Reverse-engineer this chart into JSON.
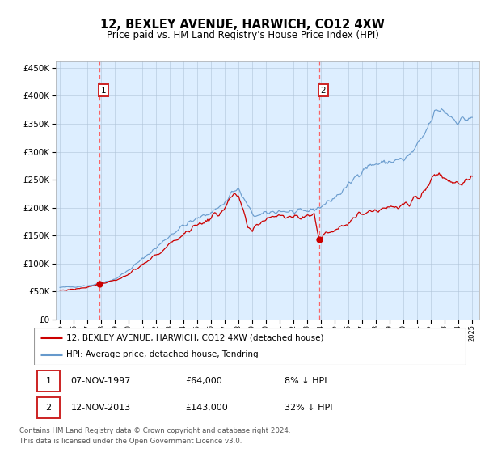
{
  "title": "12, BEXLEY AVENUE, HARWICH, CO12 4XW",
  "subtitle": "Price paid vs. HM Land Registry's House Price Index (HPI)",
  "sale1_year": 1997.86,
  "sale1_price": 64000,
  "sale2_year": 2013.86,
  "sale2_price": 143000,
  "legend_line1": "12, BEXLEY AVENUE, HARWICH, CO12 4XW (detached house)",
  "legend_line2": "HPI: Average price, detached house, Tendring",
  "footnote": "Contains HM Land Registry data © Crown copyright and database right 2024.\nThis data is licensed under the Open Government Licence v3.0.",
  "line_red_color": "#cc0000",
  "line_blue_color": "#6699cc",
  "plot_bg": "#ddeeff",
  "grid_color": "#b0c4d8",
  "dashed_line_color": "#ff5555",
  "ylim_max": 462000,
  "ylim_min": 0,
  "xlim_min": 1994.7,
  "xlim_max": 2025.5,
  "hpi_anchors_x": [
    1995.0,
    1996.0,
    1997.0,
    1997.5,
    1998.0,
    1999.0,
    2000.0,
    2001.0,
    2002.0,
    2003.0,
    2004.0,
    2005.0,
    2006.0,
    2007.0,
    2007.5,
    2008.0,
    2008.5,
    2009.0,
    2009.5,
    2010.0,
    2010.5,
    2011.0,
    2011.5,
    2012.0,
    2012.5,
    2013.0,
    2013.5,
    2014.0,
    2014.5,
    2015.0,
    2015.5,
    2016.0,
    2016.5,
    2017.0,
    2017.5,
    2018.0,
    2018.5,
    2019.0,
    2019.5,
    2020.0,
    2020.5,
    2021.0,
    2021.5,
    2022.0,
    2022.25,
    2022.5,
    2022.75,
    2023.0,
    2023.5,
    2024.0,
    2024.5,
    2025.0
  ],
  "hpi_anchors_y": [
    57000,
    58500,
    60500,
    62000,
    65000,
    72000,
    88000,
    108000,
    128000,
    150000,
    168000,
    180000,
    192000,
    208000,
    228000,
    232000,
    210000,
    188000,
    185000,
    190000,
    192000,
    194000,
    193000,
    192000,
    192000,
    194000,
    197000,
    202000,
    210000,
    218000,
    228000,
    240000,
    255000,
    268000,
    275000,
    278000,
    280000,
    282000,
    285000,
    285000,
    295000,
    310000,
    330000,
    355000,
    368000,
    374000,
    376000,
    372000,
    362000,
    355000,
    358000,
    362000
  ],
  "red_anchors_x": [
    1995.0,
    1996.0,
    1997.0,
    1997.86,
    1998.5,
    1999.5,
    2000.5,
    2001.5,
    2002.5,
    2003.5,
    2004.5,
    2005.5,
    2006.5,
    2007.0,
    2007.5,
    2008.0,
    2008.3,
    2008.7,
    2009.0,
    2009.3,
    2009.7,
    2010.0,
    2010.5,
    2011.0,
    2011.5,
    2012.0,
    2012.5,
    2013.0,
    2013.5,
    2013.86,
    2014.5,
    2015.0,
    2015.5,
    2016.0,
    2016.5,
    2017.0,
    2017.5,
    2018.0,
    2018.5,
    2019.0,
    2019.5,
    2020.0,
    2020.5,
    2021.0,
    2021.5,
    2022.0,
    2022.25,
    2022.5,
    2022.75,
    2023.0,
    2023.5,
    2024.0,
    2024.5,
    2025.0
  ],
  "red_anchors_y": [
    52000,
    54000,
    58000,
    64000,
    67000,
    74000,
    88000,
    106000,
    124000,
    144000,
    162000,
    175000,
    188000,
    202000,
    218000,
    220000,
    195000,
    162000,
    155000,
    170000,
    175000,
    180000,
    185000,
    188000,
    185000,
    184000,
    182000,
    185000,
    190000,
    143000,
    155000,
    162000,
    168000,
    175000,
    182000,
    190000,
    195000,
    196000,
    200000,
    200000,
    200000,
    202000,
    210000,
    220000,
    230000,
    248000,
    258000,
    262000,
    258000,
    252000,
    248000,
    245000,
    245000,
    250000
  ]
}
